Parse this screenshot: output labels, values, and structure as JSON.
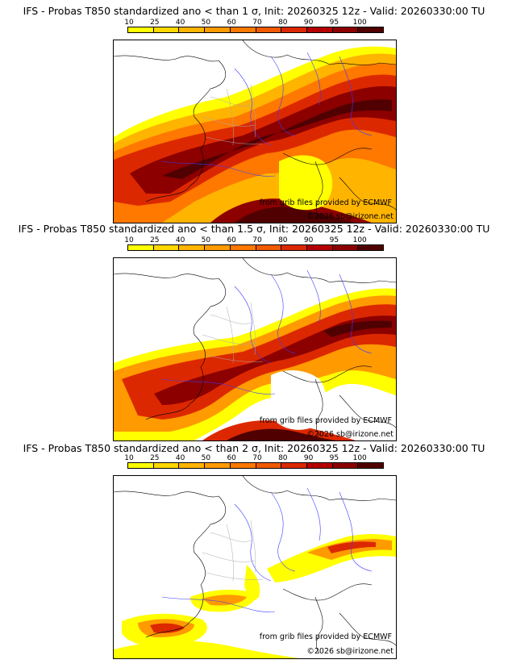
{
  "panels": [
    {
      "title": "IFS - Probas T850  standardized ano < than 1 σ, Init: 20260325 12z - Valid: 20260330:00 TU",
      "credit_grib": "from grib files provided by ECMWF",
      "credit_site": "©2026 sb@irizone.net"
    },
    {
      "title": "IFS - Probas T850  standardized ano < than 1.5 σ, Init: 20260325 12z - Valid: 20260330:00 TU",
      "credit_grib": "from grib files provided by ECMWF",
      "credit_site": "©2026 sb@irizone.net"
    },
    {
      "title": "IFS - Probas T850  standardized ano < than 2 σ, Init: 20260325 12z - Valid: 20260330:00 TU",
      "credit_grib": "from grib files provided by ECMWF",
      "credit_site": "©2026 sb@irizone.net"
    }
  ],
  "legend": {
    "labels": [
      "10",
      "25",
      "40",
      "50",
      "60",
      "70",
      "80",
      "90",
      "95",
      "100"
    ],
    "colors": [
      "#ffff00",
      "#ffd800",
      "#ffb400",
      "#ff9a00",
      "#ff7800",
      "#f05a00",
      "#dc2800",
      "#b40000",
      "#8c0000",
      "#500000"
    ]
  }
}
